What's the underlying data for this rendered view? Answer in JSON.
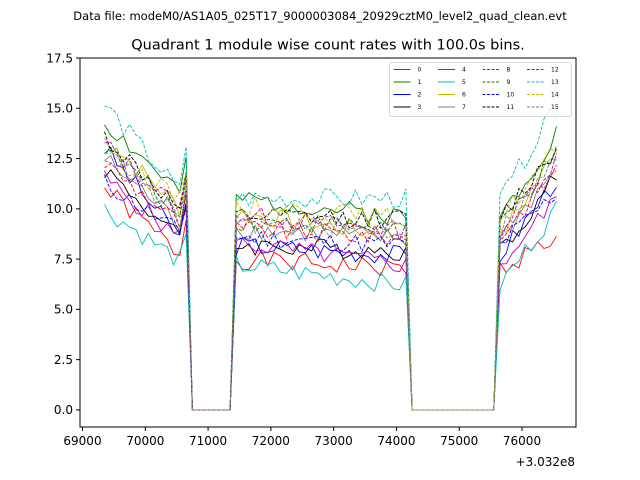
{
  "figure": {
    "suptitle": "Data file: modeM0/AS1A05_025T17_9000003084_20929cztM0_level2_quad_clean.evt"
  },
  "chart_data": {
    "type": "line",
    "title": "Quadrant 1 module wise count rates with 100.0s bins.",
    "xlabel": "",
    "ylabel": "",
    "x_offset_label": "+3.032e8",
    "xlim": [
      68960,
      76860
    ],
    "ylim": [
      -0.85,
      17.5
    ],
    "xticks": [
      69000,
      70000,
      71000,
      72000,
      73000,
      74000,
      75000,
      76000
    ],
    "xtick_labels": [
      "69000",
      "70000",
      "71000",
      "72000",
      "73000",
      "74000",
      "75000",
      "76000"
    ],
    "yticks": [
      0.0,
      2.5,
      5.0,
      7.5,
      10.0,
      12.5,
      15.0,
      17.5
    ],
    "ytick_labels": [
      "0.0",
      "2.5",
      "5.0",
      "7.5",
      "10.0",
      "12.5",
      "15.0",
      "17.5"
    ],
    "grid": false,
    "legend_position": "top-right",
    "legend_columns": 4,
    "segments": [
      {
        "start": 69350,
        "n": 14,
        "step": 100
      },
      {
        "start": 70750,
        "n": 7,
        "step": 100,
        "zero": true
      },
      {
        "start": 71450,
        "n": 28,
        "step": 100
      },
      {
        "start": 74250,
        "n": 14,
        "step": 100,
        "zero": true
      },
      {
        "start": 75650,
        "n": 10,
        "step": 100
      }
    ],
    "series": [
      {
        "name": "0",
        "color": "#ff0000",
        "dash": false,
        "levels": [
          11.0,
          7.5,
          7.0,
          8.6,
          7.3
        ]
      },
      {
        "name": "1",
        "color": "#008000",
        "dash": false,
        "levels": [
          14.3,
          10.5,
          9.6,
          13.8,
          11.0
        ]
      },
      {
        "name": "2",
        "color": "#0000ff",
        "dash": false,
        "levels": [
          13.0,
          8.2,
          7.7,
          11.5,
          8.6
        ]
      },
      {
        "name": "3",
        "color": "#000000",
        "dash": false,
        "levels": [
          12.0,
          8.2,
          7.9,
          11.6,
          8.8
        ]
      },
      {
        "name": "4",
        "color": "#bf00bf",
        "dash": false,
        "levels": [
          11.5,
          8.3,
          7.2,
          10.5,
          8.2
        ]
      },
      {
        "name": "5",
        "color": "#00bfbf",
        "dash": false,
        "levels": [
          10.0,
          7.2,
          6.2,
          10.0,
          7.0
        ]
      },
      {
        "name": "6",
        "color": "#bfbf00",
        "dash": false,
        "levels": [
          13.5,
          9.8,
          8.6,
          12.8,
          10.2
        ]
      },
      {
        "name": "7",
        "color": "#808080",
        "dash": false,
        "levels": [
          12.5,
          9.0,
          8.5,
          12.0,
          9.6
        ]
      },
      {
        "name": "8",
        "color": "#ff0000",
        "dash": true,
        "levels": [
          12.3,
          9.0,
          8.6,
          12.0,
          9.8
        ]
      },
      {
        "name": "9",
        "color": "#008000",
        "dash": true,
        "levels": [
          13.2,
          9.4,
          9.1,
          12.7,
          10.4
        ]
      },
      {
        "name": "10",
        "color": "#0000ff",
        "dash": true,
        "levels": [
          11.3,
          8.6,
          8.2,
          10.8,
          8.4
        ]
      },
      {
        "name": "11",
        "color": "#000000",
        "dash": true,
        "levels": [
          13.6,
          9.6,
          9.5,
          13.0,
          10.8
        ]
      },
      {
        "name": "12",
        "color": "#bf00bf",
        "dash": true,
        "levels": [
          13.2,
          9.7,
          8.9,
          12.5,
          10.0
        ]
      },
      {
        "name": "13",
        "color": "#00bfbf",
        "dash": true,
        "levels": [
          15.2,
          10.5,
          10.5,
          15.0,
          12.3
        ]
      },
      {
        "name": "14",
        "color": "#bfbf00",
        "dash": true,
        "levels": [
          13.0,
          10.2,
          9.5,
          13.0,
          10.6
        ]
      },
      {
        "name": "15",
        "color": "#808080",
        "dash": true,
        "levels": [
          12.8,
          9.2,
          8.9,
          12.4,
          10.2
        ]
      }
    ]
  }
}
